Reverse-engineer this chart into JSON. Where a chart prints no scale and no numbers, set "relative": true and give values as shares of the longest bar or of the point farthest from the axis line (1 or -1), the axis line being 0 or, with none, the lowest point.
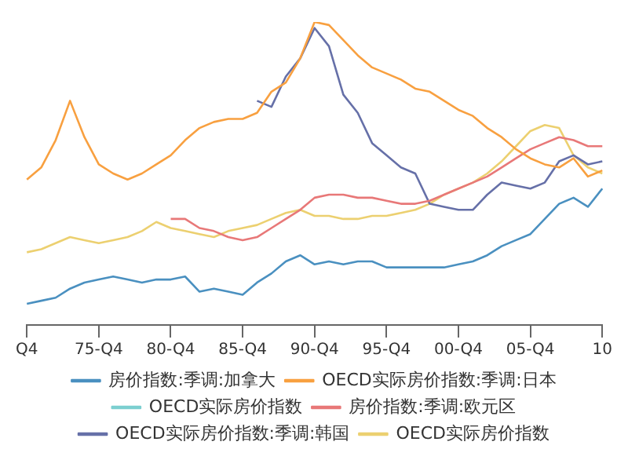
{
  "chart_data": {
    "type": "line",
    "relative": true,
    "categories": [
      "Q4",
      null,
      null,
      null,
      null,
      "75-Q4",
      null,
      null,
      null,
      null,
      "80-Q4",
      null,
      null,
      null,
      null,
      "85-Q4",
      null,
      null,
      null,
      null,
      "90-Q4",
      null,
      null,
      null,
      null,
      "95-Q4",
      null,
      null,
      null,
      null,
      "00-Q4",
      null,
      null,
      null,
      null,
      "05-Q4",
      null,
      null,
      null,
      null,
      "10"
    ],
    "legend": "bottom",
    "marker": "none",
    "line_style": "solid",
    "series": [
      {
        "name": "房价指数:季调:加拿大",
        "color": "#4a90c0",
        "values": [
          0.07,
          0.08,
          0.09,
          0.12,
          0.14,
          0.15,
          0.16,
          0.15,
          0.14,
          0.15,
          0.15,
          0.16,
          0.11,
          0.12,
          0.11,
          0.1,
          0.14,
          0.17,
          0.21,
          0.23,
          0.2,
          0.21,
          0.2,
          0.21,
          0.21,
          0.19,
          0.19,
          0.19,
          0.19,
          0.19,
          0.2,
          0.21,
          0.23,
          0.26,
          0.28,
          0.3,
          0.35,
          0.4,
          0.42,
          0.39,
          0.45
        ]
      },
      {
        "name": "OECD实际房价指数:季调:日本",
        "color": "#f8a040",
        "values": [
          0.48,
          0.52,
          0.61,
          0.74,
          0.62,
          0.53,
          0.5,
          0.48,
          0.5,
          0.53,
          0.56,
          0.61,
          0.65,
          0.67,
          0.68,
          0.68,
          0.7,
          0.77,
          0.8,
          0.88,
          1.0,
          0.99,
          0.94,
          0.89,
          0.85,
          0.83,
          0.81,
          0.78,
          0.77,
          0.74,
          0.71,
          0.69,
          0.65,
          0.62,
          0.58,
          0.55,
          0.53,
          0.52,
          0.55,
          0.49,
          0.51
        ]
      },
      {
        "name": "OECD实际房价指数",
        "color": "#7ccfd0",
        "values": [
          null,
          null,
          null,
          null,
          null,
          null,
          null,
          null,
          null,
          null,
          null,
          null,
          null,
          null,
          null,
          null,
          null,
          null,
          null,
          null,
          null,
          null,
          null,
          null,
          null,
          null,
          null,
          null,
          null,
          null,
          null,
          null,
          null,
          null,
          null,
          null,
          null,
          null,
          null,
          null,
          null
        ]
      },
      {
        "name": "房价指数:季调:欧元区",
        "color": "#e87878",
        "values": [
          null,
          null,
          null,
          null,
          null,
          null,
          null,
          null,
          null,
          null,
          0.35,
          0.35,
          0.32,
          0.31,
          0.29,
          0.28,
          0.29,
          0.32,
          0.35,
          0.38,
          0.42,
          0.43,
          0.43,
          0.42,
          0.42,
          0.41,
          0.4,
          0.4,
          0.41,
          0.43,
          0.45,
          0.47,
          0.49,
          0.52,
          0.55,
          0.58,
          0.6,
          0.62,
          0.61,
          0.59,
          0.59
        ]
      },
      {
        "name": "OECD实际房价指数:季调:韩国",
        "color": "#6670a8",
        "values": [
          null,
          null,
          null,
          null,
          null,
          null,
          null,
          null,
          null,
          null,
          null,
          null,
          null,
          null,
          null,
          null,
          0.74,
          0.72,
          0.82,
          0.88,
          0.98,
          0.92,
          0.76,
          0.7,
          0.6,
          0.56,
          0.52,
          0.5,
          0.4,
          0.39,
          0.38,
          0.38,
          0.43,
          0.47,
          0.46,
          0.45,
          0.47,
          0.54,
          0.56,
          0.53,
          0.54
        ]
      },
      {
        "name": "OECD实际房价指数",
        "color": "#ecd070",
        "values": [
          0.24,
          0.25,
          0.27,
          0.29,
          0.28,
          0.27,
          0.28,
          0.29,
          0.31,
          0.34,
          0.32,
          0.31,
          0.3,
          0.29,
          0.31,
          0.32,
          0.33,
          0.35,
          0.37,
          0.38,
          0.36,
          0.36,
          0.35,
          0.35,
          0.36,
          0.36,
          0.37,
          0.38,
          0.4,
          0.43,
          0.45,
          0.47,
          0.5,
          0.54,
          0.59,
          0.64,
          0.66,
          0.65,
          0.56,
          0.52,
          0.5
        ]
      }
    ]
  }
}
